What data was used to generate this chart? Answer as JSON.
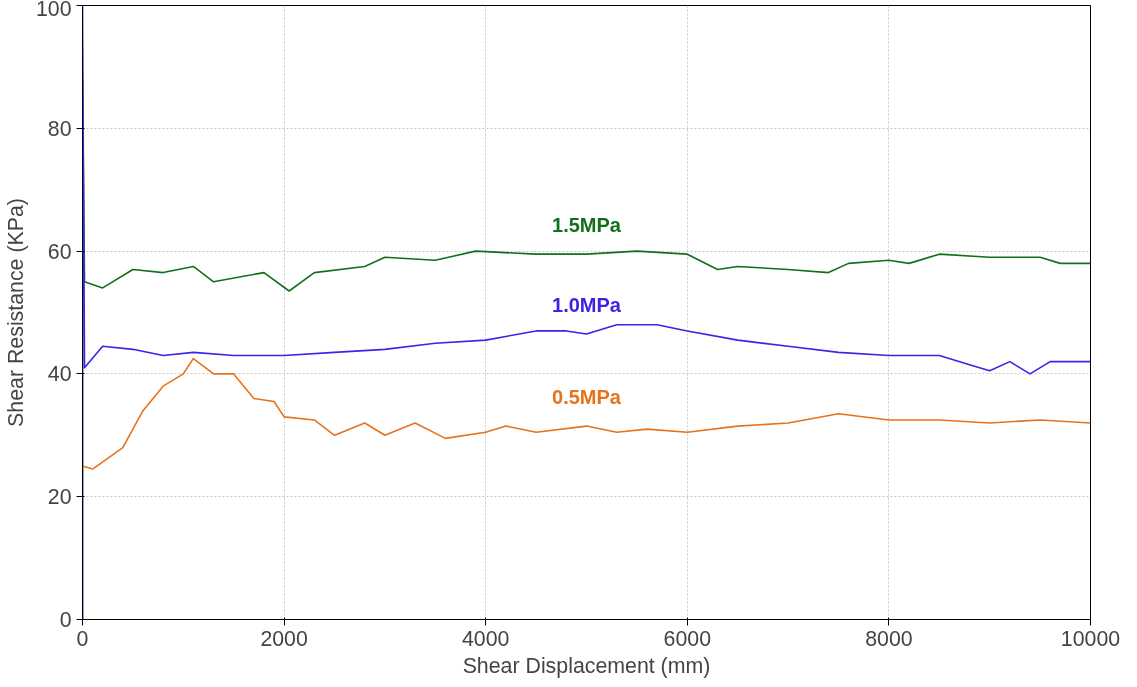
{
  "chart_data": {
    "type": "line",
    "xlabel": "Shear Displacement (mm)",
    "ylabel": "Shear Resistance (KPa)",
    "xlim": [
      0,
      10000
    ],
    "ylim": [
      0,
      100
    ],
    "xticks": [
      0,
      2000,
      4000,
      6000,
      8000,
      10000
    ],
    "yticks": [
      0,
      20,
      40,
      60,
      80,
      100
    ],
    "grid": true,
    "marker": "none",
    "line_style": "solid",
    "series": [
      {
        "name": "1.5MPa",
        "color": "#11711a",
        "x": [
          0,
          0,
          20,
          200,
          500,
          800,
          1100,
          1300,
          1800,
          2050,
          2300,
          2800,
          3000,
          3500,
          3900,
          4500,
          5000,
          5500,
          6000,
          6300,
          6500,
          7000,
          7400,
          7600,
          8000,
          8200,
          8500,
          9000,
          9500,
          9700,
          10000
        ],
        "values": [
          0,
          88,
          55,
          54,
          57,
          56.5,
          57.5,
          55,
          56.5,
          53.5,
          56.5,
          57.5,
          59,
          58.5,
          60,
          59.5,
          59.5,
          60,
          59.5,
          57,
          57.5,
          57,
          56.5,
          58,
          58.5,
          58,
          59.5,
          59,
          59,
          58,
          58
        ]
      },
      {
        "name": "1.0MPa",
        "color": "#3b24e6",
        "x": [
          0,
          0,
          20,
          200,
          500,
          800,
          1100,
          1500,
          2000,
          2500,
          3000,
          3500,
          4000,
          4500,
          4800,
          5000,
          5300,
          5700,
          6000,
          6500,
          7000,
          7500,
          8000,
          8500,
          8800,
          9000,
          9200,
          9400,
          9600,
          10000
        ],
        "values": [
          0,
          100,
          41,
          44.5,
          44,
          43,
          43.5,
          43,
          43,
          43.5,
          44,
          45,
          45.5,
          47,
          47,
          46.5,
          48,
          48,
          47,
          45.5,
          44.5,
          43.5,
          43,
          43,
          41.5,
          40.5,
          42,
          40,
          42,
          42
        ]
      },
      {
        "name": "0.5MPa",
        "color": "#e8721a",
        "x": [
          0,
          100,
          400,
          600,
          800,
          1000,
          1100,
          1300,
          1500,
          1700,
          1900,
          2000,
          2300,
          2500,
          2800,
          3000,
          3300,
          3600,
          4000,
          4200,
          4500,
          5000,
          5300,
          5600,
          6000,
          6500,
          7000,
          7500,
          8000,
          8500,
          9000,
          9500,
          10000
        ],
        "values": [
          25,
          24.5,
          28,
          34,
          38,
          40,
          42.5,
          40,
          40,
          36,
          35.5,
          33,
          32.5,
          30,
          32,
          30,
          32,
          29.5,
          30.5,
          31.5,
          30.5,
          31.5,
          30.5,
          31,
          30.5,
          31.5,
          32,
          33.5,
          32.5,
          32.5,
          32,
          32.5,
          32
        ]
      }
    ]
  }
}
